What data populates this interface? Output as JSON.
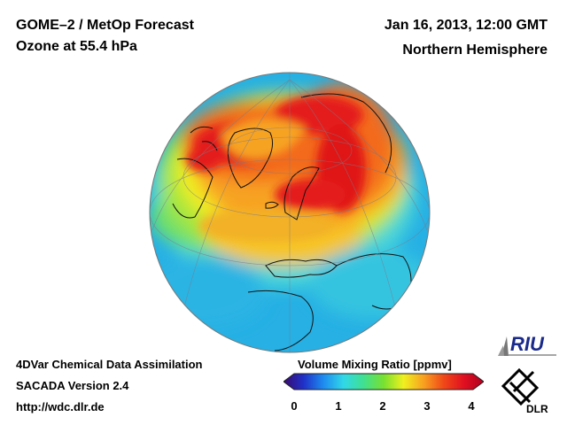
{
  "header": {
    "title_line1": "GOME–2 / MetOp Forecast",
    "title_line2": "Ozone at 55.4 hPa",
    "datetime": "Jan 16, 2013, 12:00 GMT",
    "region": "Northern Hemisphere"
  },
  "footer": {
    "line1": "4DVar Chemical Data Assimilation",
    "line2": "SACADA Version 2.4",
    "line3": "http://wdc.dlr.de"
  },
  "colorbar": {
    "label": "Volume Mixing Ratio [ppmv]",
    "ticks": [
      "0",
      "1",
      "2",
      "3",
      "4"
    ],
    "colors": [
      "#3a0a6e",
      "#2030c8",
      "#1e8cf0",
      "#30d8e8",
      "#40e090",
      "#78e030",
      "#f0f020",
      "#f8a020",
      "#f04818",
      "#e01020",
      "#b00020"
    ]
  },
  "logos": {
    "riu": "RIU",
    "dlr": "DLR"
  },
  "map": {
    "projection": "orthographic",
    "colors": {
      "ocean_low": "#29b8e6",
      "background": "#22aee4",
      "high": "#e31b1b"
    }
  }
}
